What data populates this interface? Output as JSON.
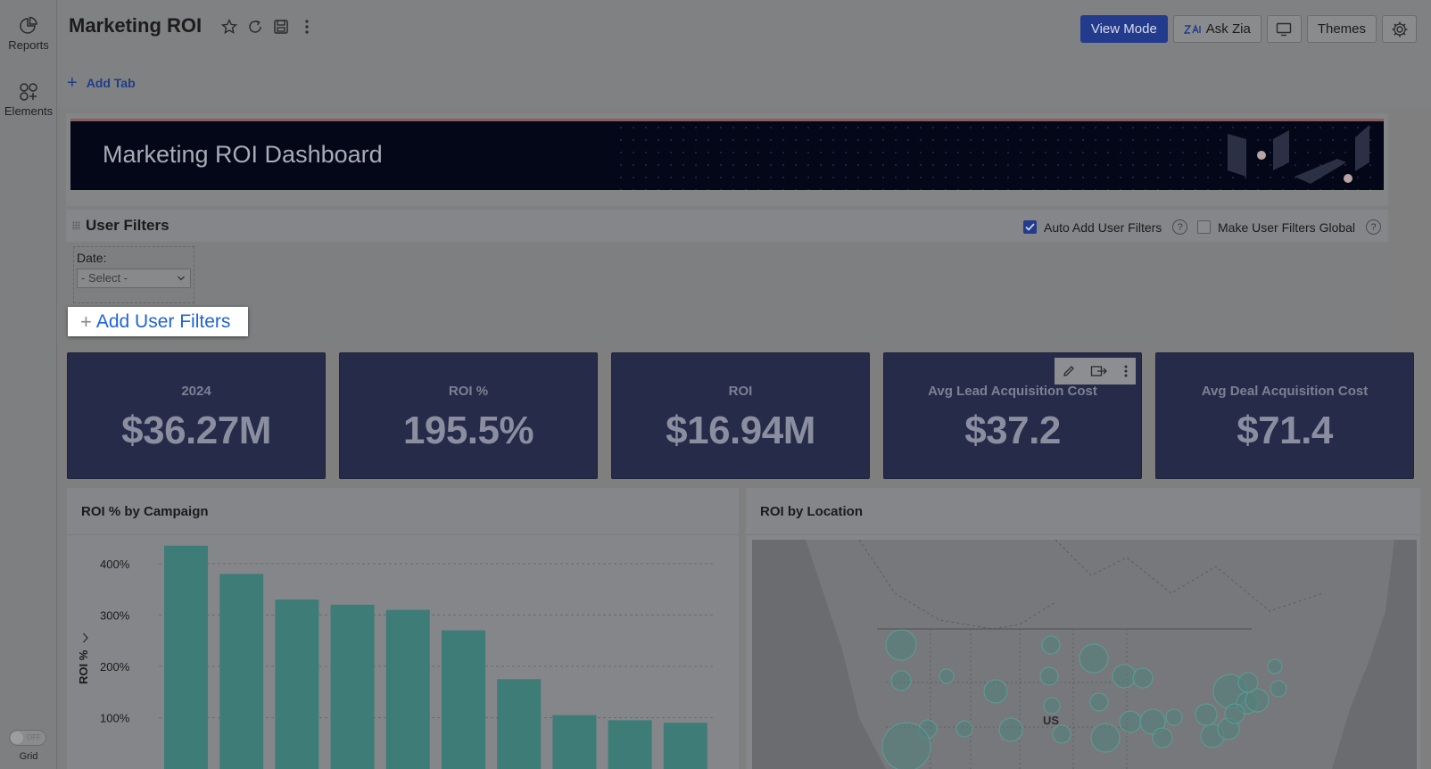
{
  "sidebar": {
    "items": [
      {
        "label": "Reports",
        "icon": "pie-chart-icon"
      },
      {
        "label": "Elements",
        "icon": "elements-icon"
      }
    ],
    "grid_toggle": {
      "state": "OFF",
      "label": "Grid"
    }
  },
  "header": {
    "title": "Marketing ROI",
    "actions": {
      "view_mode": "View Mode",
      "ask_zia": "Ask Zia",
      "themes": "Themes"
    },
    "add_tab": "Add Tab"
  },
  "banner": {
    "title": "Marketing ROI Dashboard"
  },
  "user_filters": {
    "title": "User Filters",
    "auto_add": {
      "label": "Auto Add User Filters",
      "checked": true
    },
    "make_global": {
      "label": "Make User Filters Global",
      "checked": false
    },
    "help_glyph": "?",
    "date_filter": {
      "label": "Date:",
      "value": "- Select -"
    },
    "add_button": "Add User Filters"
  },
  "kpis": [
    {
      "label": "2024",
      "value": "$36.27M"
    },
    {
      "label": "ROI %",
      "value": "195.5%"
    },
    {
      "label": "ROI",
      "value": "$16.94M"
    },
    {
      "label": "Avg Lead Acquisition Cost",
      "value": "$37.2"
    },
    {
      "label": "Avg Deal Acquisition Cost",
      "value": "$71.4"
    }
  ],
  "panels": {
    "campaign": {
      "title": "ROI % by Campaign"
    },
    "location": {
      "title": "ROI by Location",
      "map_label": "US"
    }
  },
  "chart_data": {
    "type": "bar",
    "title": "ROI % by Campaign",
    "ylabel": "ROI %",
    "y_ticks": [
      "100%",
      "200%",
      "300%",
      "400%"
    ],
    "values": [
      435,
      380,
      330,
      320,
      310,
      270,
      175,
      105,
      95,
      90
    ],
    "ylim": [
      0,
      450
    ],
    "grid": true,
    "bar_color": "#3e7c78"
  },
  "colors": {
    "accent": "#223b8c",
    "kpi_card": "#262b4a",
    "banner_bg": "#040718",
    "link": "#1f62d9"
  }
}
